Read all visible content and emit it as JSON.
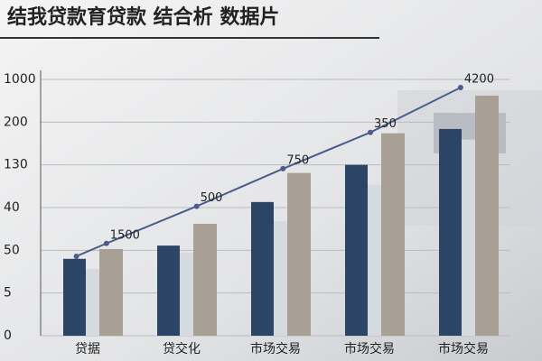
{
  "chart_data": {
    "type": "bar",
    "title": "结我贷款育贷款 结合析 数据片",
    "categories": [
      "贷据",
      "贷交化",
      "市场交易",
      "市场交易",
      "市场交易"
    ],
    "series": [
      {
        "color": "#2c4466",
        "values": [
          1.8,
          2.11,
          3.13,
          4.0,
          4.84
        ]
      },
      {
        "color": "#d6d9de",
        "values": [
          1.56,
          1.95,
          2.68,
          3.53,
          4.59
        ]
      },
      {
        "color": "#a89f95",
        "values": [
          2.03,
          2.62,
          3.81,
          4.74,
          5.62
        ]
      }
    ],
    "trend": {
      "color": "#4b5d8c",
      "x": [
        -0.12,
        0.2,
        1.16,
        2.08,
        3.01,
        3.97
      ],
      "values": [
        1.86,
        2.16,
        3.03,
        3.91,
        4.76,
        5.81
      ]
    },
    "annotations": [
      "1500",
      "500",
      "750",
      "350",
      "4200"
    ],
    "ylim": [
      0,
      6
    ],
    "yticks": [
      {
        "value": 0,
        "label": "0"
      },
      {
        "value": 1,
        "label": "5"
      },
      {
        "value": 2,
        "label": "50"
      },
      {
        "value": 3,
        "label": "40"
      },
      {
        "value": 4,
        "label": "130"
      },
      {
        "value": 5,
        "label": "200"
      },
      {
        "value": 6,
        "label": "1000"
      }
    ],
    "grid": true
  }
}
